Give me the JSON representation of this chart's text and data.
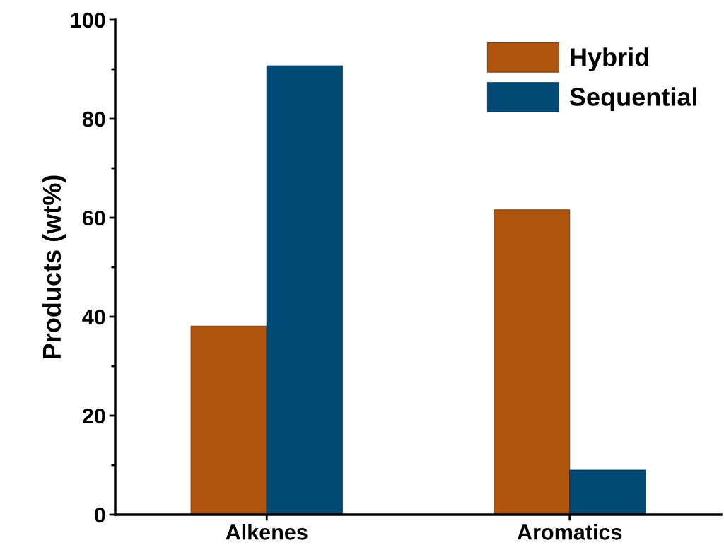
{
  "chart_data": {
    "type": "bar",
    "ylabel": "Products (wt%)",
    "categories": [
      "Alkenes",
      "Aromatics"
    ],
    "series": [
      {
        "name": "Hybrid",
        "color": "#b0550f",
        "values": [
          38.1,
          61.6
        ]
      },
      {
        "name": "Sequential",
        "color": "#004a75",
        "values": [
          90.7,
          9.0
        ]
      }
    ],
    "ylim": [
      0,
      100
    ],
    "yticks": [
      0,
      20,
      40,
      60,
      80,
      100
    ],
    "grid": false,
    "legend": "top right"
  }
}
